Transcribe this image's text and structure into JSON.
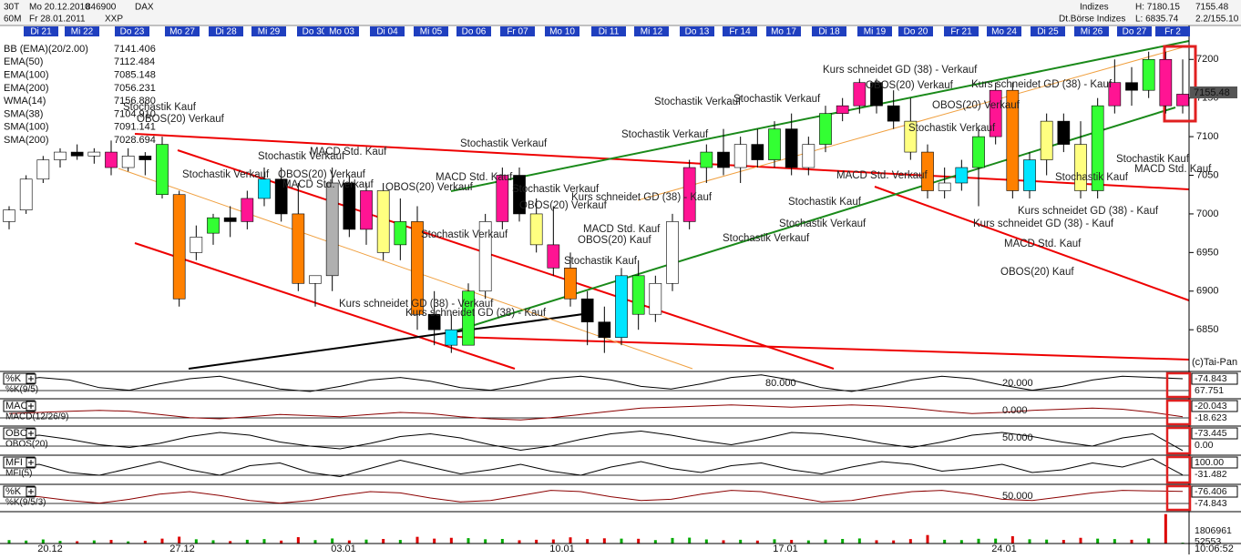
{
  "header": {
    "interval": "30T",
    "start": "Mo 20.12.2010",
    "code": "846900",
    "symbol": "DAX",
    "period": "60M",
    "end": "Fr 28.01.2011",
    "exchange_code": "XXP",
    "group": "Indizes",
    "exchange": "Dt.Börse Indizes",
    "high": "H: 7180.15",
    "low": "L: 6835.74",
    "last": "7155.48",
    "change": "2.2/155.10"
  },
  "day_labels": [
    "Di 21",
    "Mi 22",
    "Do 23",
    "Mo 27",
    "Di 28",
    "Mi 29",
    "Do 30",
    "Mo 03",
    "Di 04",
    "Mi 05",
    "Do 06",
    "Fr 07",
    "Mo 10",
    "Di 11",
    "Mi 12",
    "Do 13",
    "Fr 14",
    "Mo 17",
    "Di 18",
    "Mi 19",
    "Do 20",
    "Fr 21",
    "Mo 24",
    "Di 25",
    "Mi 26",
    "Do 27",
    "Fr 2"
  ],
  "date_labels": [
    "20.12",
    "27.12",
    "03.01",
    "10.01",
    "17.01",
    "24.01"
  ],
  "time": "10:06:52",
  "chart_data": [
    {
      "type": "candlestick",
      "ylim": [
        6796,
        7251
      ],
      "yticks": [
        6850,
        6900,
        6950,
        7000,
        7050,
        7100,
        7150,
        7200
      ],
      "last_price": "7155.48",
      "credit": "(c)Tai-Pan",
      "legend": [
        {
          "name": "BB (EMA)(20/2.00)",
          "value": "7141.406",
          "color": "#0000ff"
        },
        {
          "name": "EMA(50)",
          "value": "7112.484",
          "color": "#ff0000"
        },
        {
          "name": "EMA(100)",
          "value": "7085.148",
          "color": "#0000c0"
        },
        {
          "name": "EMA(200)",
          "value": "7056.231",
          "color": "#00cc00"
        },
        {
          "name": "WMA(14)",
          "value": "7156.880",
          "color": "#00aaaa"
        },
        {
          "name": "SMA(38)",
          "value": "7104.910",
          "color": "#cc0066"
        },
        {
          "name": "SMA(100)",
          "value": "7091.141",
          "color": "#999900"
        },
        {
          "name": "SMA(200)",
          "value": "7028.694",
          "color": "#000080"
        }
      ],
      "open": [
        6990,
        7005,
        7045,
        7070,
        7080,
        7075,
        7080,
        7060,
        7075,
        7090,
        7025,
        6950,
        6975,
        6995,
        6990,
        7020,
        7045,
        7000,
        6910,
        6920,
        7040,
        6980,
        7030,
        6960,
        6990,
        6870,
        6850,
        6830,
        6900,
        6990,
        7050,
        7000,
        6960,
        6930,
        6890,
        6860,
        6840,
        6920,
        6870,
        6910,
        6990,
        7060,
        7080,
        7060,
        7090,
        7070,
        7110,
        7060,
        7090,
        7130,
        7140,
        7170,
        7140,
        7120,
        7080,
        7030,
        7040,
        7060,
        7100,
        7160,
        7030,
        7070,
        7120,
        7090,
        7030,
        7140,
        7170,
        7160,
        7200,
        7140
      ],
      "high": [
        7010,
        7050,
        7075,
        7085,
        7090,
        7085,
        7095,
        7085,
        7080,
        7100,
        7030,
        6985,
        7000,
        7010,
        7030,
        7060,
        7060,
        7040,
        6920,
        7060,
        7050,
        7040,
        7040,
        7020,
        7010,
        6900,
        6870,
        6910,
        7000,
        7060,
        7060,
        7020,
        7010,
        6950,
        6900,
        6880,
        6930,
        6940,
        6920,
        7000,
        7070,
        7090,
        7110,
        7100,
        7110,
        7120,
        7130,
        7100,
        7140,
        7150,
        7175,
        7175,
        7160,
        7150,
        7090,
        7060,
        7070,
        7110,
        7170,
        7170,
        7080,
        7130,
        7130,
        7120,
        7150,
        7200,
        7190,
        7210,
        7210,
        7200
      ],
      "low": [
        6980,
        7000,
        7040,
        7060,
        7070,
        7065,
        7050,
        7055,
        7050,
        7020,
        6880,
        6940,
        6960,
        6970,
        6980,
        7010,
        6990,
        6900,
        6880,
        6900,
        6970,
        6960,
        6940,
        6940,
        6850,
        6830,
        6820,
        6830,
        6890,
        6980,
        6990,
        6950,
        6920,
        6880,
        6830,
        6820,
        6830,
        6850,
        6860,
        6900,
        6980,
        7040,
        7050,
        7040,
        7060,
        7060,
        7050,
        7050,
        7080,
        7120,
        7130,
        7130,
        7110,
        7070,
        7020,
        7020,
        7030,
        7010,
        7090,
        7020,
        7020,
        7050,
        7080,
        7020,
        7020,
        7130,
        7140,
        7150,
        7130,
        7130
      ],
      "close": [
        7005,
        7045,
        7070,
        7080,
        7075,
        7080,
        7060,
        7075,
        7070,
        7025,
        6890,
        6970,
        6995,
        6990,
        7020,
        7045,
        7000,
        6910,
        6920,
        7040,
        6980,
        7030,
        6950,
        6990,
        6870,
        6850,
        6830,
        6900,
        6990,
        7050,
        7000,
        6960,
        6930,
        6890,
        6860,
        6840,
        6920,
        6870,
        6910,
        6990,
        7060,
        7080,
        7060,
        7090,
        7070,
        7110,
        7060,
        7090,
        7130,
        7140,
        7170,
        7140,
        7120,
        7080,
        7030,
        7040,
        7060,
        7100,
        7160,
        7030,
        7070,
        7120,
        7090,
        7030,
        7140,
        7170,
        7160,
        7200,
        7140,
        7155
      ],
      "candle_colors": [
        "#ffffff",
        "#ffffff",
        "#ffffff",
        "#ffffff",
        "#000000",
        "#ffffff",
        "#ff1493",
        "#ffffff",
        "#000000",
        "#33ff33",
        "#ff8000",
        "#ffffff",
        "#33ff33",
        "#000000",
        "#ff1493",
        "#00e5ff",
        "#000000",
        "#ff8000",
        "#ffffff",
        "#b0b0b0",
        "#000000",
        "#ff1493",
        "#ffff80",
        "#33ff33",
        "#ff8000",
        "#000000",
        "#00e5ff",
        "#33ff33",
        "#ffffff",
        "#ff1493",
        "#000000",
        "#ffff80",
        "#ff1493",
        "#ff8000",
        "#000000",
        "#000000",
        "#00e5ff",
        "#33ff33",
        "#ffffff",
        "#ffffff",
        "#ff1493",
        "#33ff33",
        "#000000",
        "#ffffff",
        "#000000",
        "#33ff33",
        "#000000",
        "#ffffff",
        "#33ff33",
        "#ff1493",
        "#ff1493",
        "#000000",
        "#000000",
        "#ffff80",
        "#ff8000",
        "#ffffff",
        "#00e5ff",
        "#33ff33",
        "#ff1493",
        "#ff8000",
        "#00e5ff",
        "#ffff80",
        "#000000",
        "#ffff80",
        "#33ff33",
        "#ff1493",
        "#000000",
        "#33ff33",
        "#ff1493",
        "#ff1493"
      ],
      "annotations": [
        "Stochastik Kauf",
        "OBOS(20) Verkauf",
        "Stochastik Verkauf",
        "OBOS(20) Verkauf",
        "MACD Std. Kauf",
        "Stochastik Verkauf",
        "OBOS(20) Verkauf",
        "MACD Std. Verkauf",
        "Kurs schneidet GD (38) - Verkauf",
        "Kurs schneidet GD (38) - Kauf",
        "Stochastik Verkauf",
        "MACD Std. Kauf",
        "Stochastik Verkauf",
        "Stochastik Verkauf",
        "OBOS(20) Verkauf",
        "Kurs schneidet GD (38) - Kauf",
        "MACD Std. Kauf",
        "OBOS(20) Kauf",
        "Stochastik Kauf",
        "Stochastik Verkauf",
        "Stochastik Verkauf",
        "Stochastik Verkauf",
        "Kurs schneidet GD (38) - Verkauf",
        "OBOS(20) Verkauf",
        "Stochastik Verkauf",
        "OBOS(20) Verkauf",
        "MACD Std. Verkauf",
        "Stochastik Kauf",
        "Stochastik Verkauf",
        "Stochastik Verkauf",
        "Kurs schneidet GD (38) - Kauf",
        "Stochastik Kauf",
        "Kurs schneidet GD (38) - Kauf",
        "Kurs schneidet GD (38) - Kauf",
        "MACD Std. Kauf",
        "OBOS(20) Kauf",
        "Stochastik Kauf",
        "MACD Std. Kauf"
      ]
    },
    {
      "type": "line",
      "label": "%K",
      "sublabel": "%K(9/5)",
      "color": "#000000",
      "ylim": [
        0,
        100
      ],
      "level_labels": [
        "80.000",
        "20.000"
      ],
      "readouts": [
        "-74.843",
        "67.751"
      ],
      "values": [
        60,
        80,
        70,
        40,
        30,
        55,
        75,
        85,
        60,
        35,
        25,
        45,
        70,
        80,
        65,
        40,
        30,
        50,
        75,
        85,
        70,
        45,
        35,
        55,
        80,
        90,
        70,
        40,
        25,
        45,
        70,
        85,
        75,
        50,
        30,
        45,
        70,
        85,
        80,
        75
      ]
    },
    {
      "type": "line",
      "label": "MACD",
      "sublabel": "MACD(12/26/9)",
      "color": "#8b0000",
      "ylim": [
        -60,
        60
      ],
      "level_labels": [
        "0.000"
      ],
      "readouts": [
        "-20.043",
        "-18.623"
      ],
      "values": [
        -5,
        0,
        5,
        10,
        5,
        -10,
        -25,
        -30,
        -20,
        -10,
        -15,
        -20,
        -10,
        0,
        -5,
        -20,
        -30,
        -35,
        -25,
        -10,
        5,
        20,
        25,
        30,
        35,
        30,
        25,
        30,
        35,
        30,
        20,
        5,
        -5,
        0,
        10,
        15,
        20,
        15,
        0,
        -20
      ]
    },
    {
      "type": "line",
      "label": "OBOS",
      "sublabel": "OBOS(20)",
      "color": "#000000",
      "ylim": [
        -100,
        100
      ],
      "level_labels": [
        "50.000"
      ],
      "readouts": [
        "-73.445",
        "0.00"
      ],
      "values": [
        20,
        40,
        10,
        -30,
        -50,
        -20,
        30,
        60,
        40,
        -10,
        -40,
        -60,
        -20,
        30,
        50,
        20,
        -30,
        -70,
        -40,
        10,
        50,
        70,
        40,
        0,
        -30,
        10,
        60,
        50,
        20,
        -20,
        -50,
        -10,
        40,
        60,
        30,
        -10,
        -40,
        20,
        50,
        -73
      ]
    },
    {
      "type": "line",
      "label": "MFI",
      "sublabel": "MFI(5)",
      "color": "#000000",
      "ylim": [
        0,
        100
      ],
      "level_labels": [],
      "readouts": [
        "100.00",
        "-31.482"
      ],
      "values": [
        60,
        70,
        40,
        30,
        55,
        80,
        50,
        30,
        65,
        75,
        40,
        25,
        55,
        85,
        60,
        35,
        50,
        70,
        45,
        30,
        60,
        80,
        55,
        40,
        65,
        75,
        50,
        35,
        60,
        80,
        70,
        45,
        55,
        70,
        40,
        50,
        75,
        60,
        90,
        31
      ]
    },
    {
      "type": "line",
      "label": "%K",
      "sublabel": "%K(9/5/3)",
      "color": "#8b0000",
      "ylim": [
        0,
        100
      ],
      "level_labels": [
        "50.000"
      ],
      "readouts": [
        "-76.406",
        "-74.843"
      ],
      "values": [
        60,
        55,
        40,
        30,
        45,
        65,
        75,
        60,
        40,
        30,
        40,
        60,
        75,
        70,
        50,
        35,
        40,
        60,
        80,
        75,
        55,
        40,
        45,
        65,
        80,
        75,
        55,
        35,
        40,
        60,
        75,
        80,
        65,
        45,
        40,
        55,
        70,
        80,
        78,
        76
      ]
    },
    {
      "type": "bar",
      "ylim": [
        0,
        1900000
      ],
      "up_color": "#00aa00",
      "down_color": "#dd0000",
      "readouts": [
        "1806961",
        "52553"
      ],
      "values": [
        210000,
        180000,
        250000,
        160000,
        140000,
        190000,
        220000,
        130000,
        170000,
        300000,
        420000,
        260000,
        200000,
        150000,
        230000,
        270000,
        180000,
        390000,
        210000,
        310000,
        190000,
        240000,
        280000,
        220000,
        410000,
        300000,
        350000,
        330000,
        260000,
        280000,
        200000,
        230000,
        250000,
        380000,
        270000,
        320000,
        300000,
        290000,
        210000,
        340000,
        360000,
        250000,
        200000,
        230000,
        180000,
        260000,
        220000,
        190000,
        240000,
        280000,
        310000,
        200000,
        190000,
        270000,
        520000,
        230000,
        210000,
        290000,
        300000,
        450000,
        260000,
        240000,
        220000,
        350000,
        300000,
        270000,
        230000,
        310000,
        1806961,
        52553
      ]
    }
  ]
}
